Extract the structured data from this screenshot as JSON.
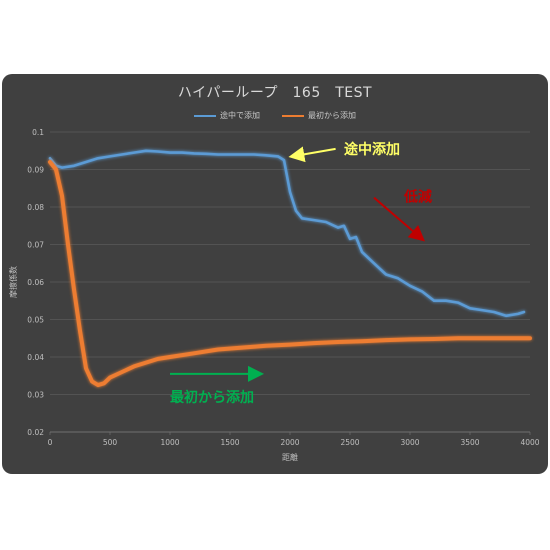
{
  "chart_data": {
    "type": "line",
    "title": "ハイパーループ　165　TEST",
    "xlabel": "距離",
    "ylabel": "摩擦係数",
    "xlim": [
      0,
      4000
    ],
    "ylim": [
      0.02,
      0.1
    ],
    "x_ticks": [
      "0",
      "500",
      "1000",
      "1500",
      "2000",
      "2500",
      "3000",
      "3500",
      "4000"
    ],
    "y_ticks": [
      "0.02",
      "0.03",
      "0.04",
      "0.05",
      "0.06",
      "0.07",
      "0.08",
      "0.09",
      "0.1"
    ],
    "grid": true,
    "legend_position": "top",
    "series": [
      {
        "name": "途中で添加",
        "color": "#5b9bd5",
        "points": [
          [
            0,
            0.093
          ],
          [
            50,
            0.091
          ],
          [
            100,
            0.0905
          ],
          [
            200,
            0.091
          ],
          [
            300,
            0.092
          ],
          [
            400,
            0.093
          ],
          [
            500,
            0.0935
          ],
          [
            600,
            0.094
          ],
          [
            700,
            0.0945
          ],
          [
            800,
            0.095
          ],
          [
            900,
            0.0948
          ],
          [
            1000,
            0.0945
          ],
          [
            1100,
            0.0945
          ],
          [
            1200,
            0.0943
          ],
          [
            1300,
            0.0942
          ],
          [
            1400,
            0.094
          ],
          [
            1500,
            0.094
          ],
          [
            1600,
            0.094
          ],
          [
            1700,
            0.094
          ],
          [
            1800,
            0.0938
          ],
          [
            1900,
            0.0935
          ],
          [
            1950,
            0.0925
          ],
          [
            2000,
            0.084
          ],
          [
            2050,
            0.079
          ],
          [
            2100,
            0.077
          ],
          [
            2200,
            0.0765
          ],
          [
            2300,
            0.076
          ],
          [
            2400,
            0.0745
          ],
          [
            2450,
            0.075
          ],
          [
            2500,
            0.0715
          ],
          [
            2550,
            0.072
          ],
          [
            2600,
            0.068
          ],
          [
            2700,
            0.065
          ],
          [
            2800,
            0.062
          ],
          [
            2900,
            0.061
          ],
          [
            3000,
            0.059
          ],
          [
            3100,
            0.0575
          ],
          [
            3200,
            0.055
          ],
          [
            3300,
            0.055
          ],
          [
            3400,
            0.0545
          ],
          [
            3500,
            0.053
          ],
          [
            3600,
            0.0525
          ],
          [
            3700,
            0.052
          ],
          [
            3800,
            0.051
          ],
          [
            3900,
            0.0515
          ],
          [
            3950,
            0.052
          ]
        ]
      },
      {
        "name": "最初から添加",
        "color": "#ed7d31",
        "points": [
          [
            0,
            0.092
          ],
          [
            50,
            0.09
          ],
          [
            100,
            0.083
          ],
          [
            150,
            0.07
          ],
          [
            200,
            0.058
          ],
          [
            250,
            0.047
          ],
          [
            300,
            0.037
          ],
          [
            350,
            0.0335
          ],
          [
            400,
            0.0325
          ],
          [
            450,
            0.033
          ],
          [
            500,
            0.0345
          ],
          [
            600,
            0.036
          ],
          [
            700,
            0.0375
          ],
          [
            800,
            0.0385
          ],
          [
            900,
            0.0395
          ],
          [
            1000,
            0.04
          ],
          [
            1200,
            0.041
          ],
          [
            1400,
            0.042
          ],
          [
            1600,
            0.0425
          ],
          [
            1800,
            0.043
          ],
          [
            2000,
            0.0433
          ],
          [
            2200,
            0.0437
          ],
          [
            2400,
            0.044
          ],
          [
            2600,
            0.0442
          ],
          [
            2800,
            0.0445
          ],
          [
            3000,
            0.0447
          ],
          [
            3200,
            0.0448
          ],
          [
            3400,
            0.045
          ],
          [
            3600,
            0.045
          ],
          [
            3800,
            0.045
          ],
          [
            4000,
            0.045
          ]
        ]
      }
    ],
    "annotations": [
      {
        "text": "途中添加",
        "color": "#ffff66",
        "arrow": "left"
      },
      {
        "text": "低減",
        "color": "#c00000",
        "arrow": "down-right"
      },
      {
        "text": "最初から添加",
        "color": "#00b050",
        "arrow": "right"
      }
    ]
  }
}
